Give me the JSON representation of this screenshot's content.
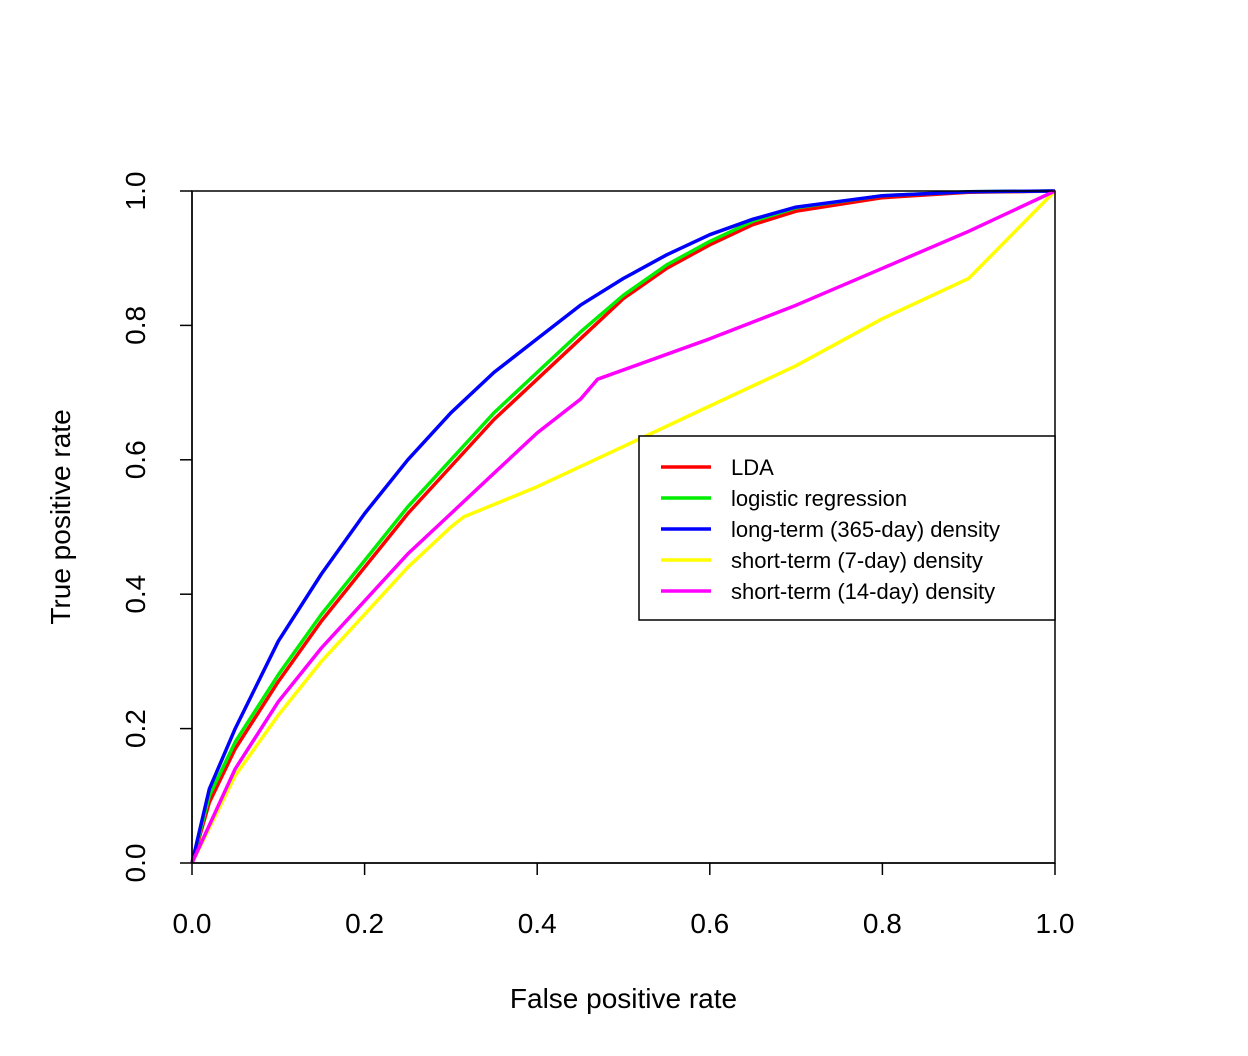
{
  "chart_data": {
    "type": "line",
    "title": "",
    "xlabel": "False positive rate",
    "ylabel": "True positive rate",
    "xlim": [
      0,
      1
    ],
    "ylim": [
      0,
      1
    ],
    "x_ticks": [
      "0.0",
      "0.2",
      "0.4",
      "0.6",
      "0.8",
      "1.0"
    ],
    "y_ticks": [
      "0.0",
      "0.2",
      "0.4",
      "0.6",
      "0.8",
      "1.0"
    ],
    "grid": false,
    "legend_position": "right",
    "series": [
      {
        "name": "LDA",
        "color": "#ff0000",
        "x": [
          0,
          0.02,
          0.05,
          0.1,
          0.15,
          0.2,
          0.25,
          0.3,
          0.35,
          0.4,
          0.45,
          0.5,
          0.55,
          0.6,
          0.65,
          0.7,
          0.8,
          0.9,
          1.0
        ],
        "y": [
          0,
          0.09,
          0.17,
          0.27,
          0.36,
          0.44,
          0.52,
          0.59,
          0.66,
          0.72,
          0.78,
          0.84,
          0.885,
          0.92,
          0.95,
          0.97,
          0.99,
          0.998,
          1.0
        ]
      },
      {
        "name": "logistic regression",
        "color": "#00ee00",
        "x": [
          0,
          0.02,
          0.05,
          0.1,
          0.15,
          0.2,
          0.25,
          0.3,
          0.35,
          0.4,
          0.45,
          0.5,
          0.55,
          0.6,
          0.65,
          0.7,
          0.8,
          0.9,
          1.0
        ],
        "y": [
          0,
          0.1,
          0.18,
          0.28,
          0.37,
          0.45,
          0.53,
          0.6,
          0.67,
          0.73,
          0.79,
          0.845,
          0.89,
          0.925,
          0.955,
          0.975,
          0.993,
          0.999,
          1.0
        ]
      },
      {
        "name": "long-term (365-day) density",
        "color": "#0000ff",
        "x": [
          0,
          0.02,
          0.05,
          0.1,
          0.15,
          0.2,
          0.25,
          0.3,
          0.35,
          0.4,
          0.45,
          0.5,
          0.55,
          0.6,
          0.65,
          0.7,
          0.8,
          0.9,
          1.0
        ],
        "y": [
          0,
          0.11,
          0.2,
          0.33,
          0.43,
          0.52,
          0.6,
          0.67,
          0.73,
          0.78,
          0.83,
          0.87,
          0.905,
          0.935,
          0.958,
          0.976,
          0.993,
          0.999,
          1.0
        ]
      },
      {
        "name": "short-term (7-day) density",
        "color": "#ffff00",
        "x": [
          0,
          0.05,
          0.1,
          0.15,
          0.2,
          0.25,
          0.3,
          0.315,
          0.4,
          0.5,
          0.6,
          0.7,
          0.8,
          0.9,
          1.0
        ],
        "y": [
          0,
          0.13,
          0.22,
          0.3,
          0.37,
          0.44,
          0.5,
          0.515,
          0.56,
          0.62,
          0.68,
          0.74,
          0.81,
          0.87,
          1.0
        ]
      },
      {
        "name": "short-term (14-day) density",
        "color": "#ff00ff",
        "x": [
          0,
          0.05,
          0.1,
          0.15,
          0.2,
          0.25,
          0.3,
          0.35,
          0.4,
          0.45,
          0.47,
          0.6,
          0.7,
          0.8,
          0.9,
          1.0
        ],
        "y": [
          0,
          0.14,
          0.24,
          0.32,
          0.39,
          0.46,
          0.52,
          0.58,
          0.64,
          0.69,
          0.72,
          0.78,
          0.83,
          0.885,
          0.94,
          1.0
        ]
      }
    ]
  }
}
